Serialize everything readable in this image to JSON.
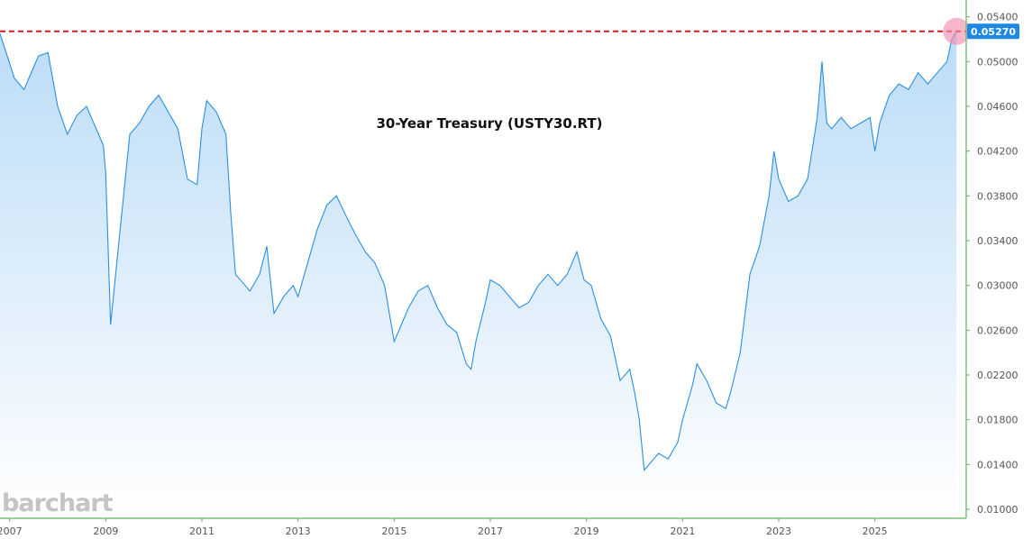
{
  "brand": "barchart",
  "colors": {
    "line": "#2b8fe0",
    "fill_top": "#bcdcf7",
    "fill_bottom": "#ffffff",
    "reference_line": "#d11a2a",
    "badge": "#1e88e5",
    "highlight": "#f48fb1",
    "axis": "#5cb85c"
  },
  "chart_data": {
    "type": "area",
    "title": "30-Year Treasury (USTY30.RT)",
    "xlabel": "",
    "ylabel": "",
    "xlim": [
      2006.8,
      2026.9
    ],
    "ylim": [
      0.0092,
      0.0555
    ],
    "x_ticks": [
      "2007",
      "2009",
      "2011",
      "2013",
      "2015",
      "2017",
      "2019",
      "2021",
      "2023",
      "2025"
    ],
    "y_ticks": [
      "0.05400",
      "0.05000",
      "0.04600",
      "0.04200",
      "0.03800",
      "0.03400",
      "0.03000",
      "0.02600",
      "0.02200",
      "0.01800",
      "0.01400",
      "0.01000"
    ],
    "grid": false,
    "legend": "none",
    "reference_line": 0.0527,
    "last_value_label": "0.05270",
    "series": [
      {
        "x": [
          2006.8,
          2006.95,
          2007.1,
          2007.3,
          2007.5,
          2007.6,
          2007.8,
          2008.0,
          2008.2,
          2008.4,
          2008.6,
          2008.8,
          2008.95,
          2009.0,
          2009.1,
          2009.3,
          2009.5,
          2009.7,
          2009.9,
          2010.1,
          2010.3,
          2010.5,
          2010.7,
          2010.9,
          2011.0,
          2011.1,
          2011.3,
          2011.5,
          2011.6,
          2011.7,
          2011.9,
          2012.0,
          2012.2,
          2012.35,
          2012.5,
          2012.7,
          2012.9,
          2013.0,
          2013.2,
          2013.4,
          2013.6,
          2013.8,
          2014.0,
          2014.2,
          2014.4,
          2014.6,
          2014.8,
          2015.0,
          2015.1,
          2015.3,
          2015.5,
          2015.7,
          2015.9,
          2016.1,
          2016.3,
          2016.5,
          2016.6,
          2016.7,
          2016.9,
          2017.0,
          2017.2,
          2017.4,
          2017.6,
          2017.8,
          2018.0,
          2018.2,
          2018.4,
          2018.6,
          2018.8,
          2018.95,
          2019.1,
          2019.3,
          2019.5,
          2019.7,
          2019.9,
          2020.0,
          2020.1,
          2020.2,
          2020.3,
          2020.4,
          2020.5,
          2020.7,
          2020.9,
          2021.0,
          2021.2,
          2021.3,
          2021.5,
          2021.7,
          2021.9,
          2022.0,
          2022.2,
          2022.4,
          2022.6,
          2022.8,
          2022.9,
          2023.0,
          2023.2,
          2023.4,
          2023.6,
          2023.8,
          2023.9,
          2024.0,
          2024.1,
          2024.3,
          2024.5,
          2024.7,
          2024.9,
          2025.0,
          2025.1,
          2025.3,
          2025.5,
          2025.7,
          2025.9,
          2026.1,
          2026.3,
          2026.5,
          2026.6,
          2026.7
        ],
        "y": [
          0.0525,
          0.0505,
          0.0485,
          0.0475,
          0.0495,
          0.0505,
          0.0508,
          0.046,
          0.0435,
          0.0452,
          0.046,
          0.044,
          0.0425,
          0.04,
          0.0265,
          0.035,
          0.0435,
          0.0445,
          0.046,
          0.047,
          0.0455,
          0.044,
          0.0395,
          0.039,
          0.044,
          0.0465,
          0.0455,
          0.0435,
          0.0365,
          0.031,
          0.03,
          0.0295,
          0.031,
          0.0335,
          0.0275,
          0.029,
          0.03,
          0.029,
          0.032,
          0.035,
          0.0372,
          0.038,
          0.0362,
          0.0345,
          0.033,
          0.032,
          0.03,
          0.025,
          0.026,
          0.028,
          0.0295,
          0.03,
          0.028,
          0.0265,
          0.0258,
          0.023,
          0.0225,
          0.025,
          0.0285,
          0.0305,
          0.03,
          0.029,
          0.028,
          0.0285,
          0.03,
          0.031,
          0.03,
          0.031,
          0.033,
          0.0305,
          0.03,
          0.027,
          0.0255,
          0.0215,
          0.0225,
          0.0205,
          0.018,
          0.0135,
          0.014,
          0.0145,
          0.015,
          0.0145,
          0.016,
          0.018,
          0.021,
          0.023,
          0.0215,
          0.0195,
          0.019,
          0.0205,
          0.024,
          0.031,
          0.0335,
          0.038,
          0.042,
          0.0395,
          0.0375,
          0.038,
          0.0395,
          0.045,
          0.05,
          0.0445,
          0.044,
          0.045,
          0.044,
          0.0445,
          0.045,
          0.042,
          0.0445,
          0.047,
          0.048,
          0.0475,
          0.049,
          0.048,
          0.049,
          0.05,
          0.052,
          0.0527
        ]
      }
    ]
  }
}
